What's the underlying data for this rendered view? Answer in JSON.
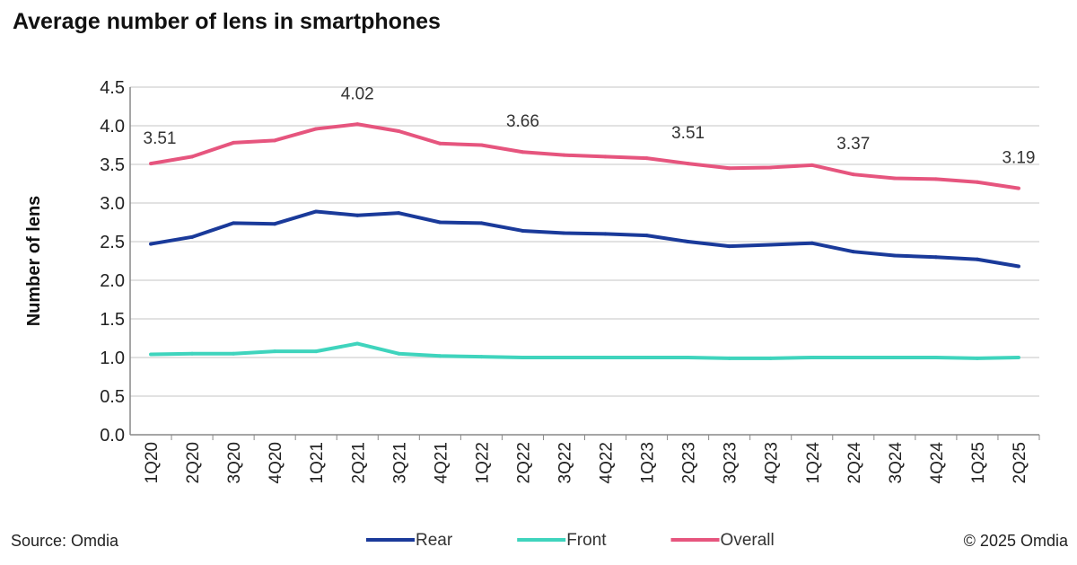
{
  "title": "Average number of lens in smartphones",
  "source": "Source: Omdia",
  "copyright": "© 2025 Omdia",
  "chart_data": {
    "type": "line",
    "title": "Average number of lens in smartphones",
    "ylabel": "Number of lens",
    "xlabel": "",
    "ylim": [
      0,
      4.5
    ],
    "yticks": [
      "0.0",
      "0.5",
      "1.0",
      "1.5",
      "2.0",
      "2.5",
      "3.0",
      "3.5",
      "4.0",
      "4.5"
    ],
    "grid": true,
    "legend": "bottom",
    "categories": [
      "1Q20",
      "2Q20",
      "3Q20",
      "4Q20",
      "1Q21",
      "2Q21",
      "3Q21",
      "4Q21",
      "1Q22",
      "2Q22",
      "3Q22",
      "4Q22",
      "1Q23",
      "2Q23",
      "3Q23",
      "4Q23",
      "1Q24",
      "2Q24",
      "3Q24",
      "4Q24",
      "1Q25",
      "2Q25"
    ],
    "series": [
      {
        "name": "Rear",
        "color": "#1a3a9a",
        "values": [
          2.47,
          2.56,
          2.74,
          2.73,
          2.89,
          2.84,
          2.87,
          2.75,
          2.74,
          2.64,
          2.61,
          2.6,
          2.58,
          2.5,
          2.44,
          2.46,
          2.48,
          2.37,
          2.32,
          2.3,
          2.27,
          2.18
        ]
      },
      {
        "name": "Front",
        "color": "#3fd4bd",
        "values": [
          1.04,
          1.05,
          1.05,
          1.08,
          1.08,
          1.18,
          1.05,
          1.02,
          1.01,
          1.0,
          1.0,
          1.0,
          1.0,
          1.0,
          0.99,
          0.99,
          1.0,
          1.0,
          1.0,
          1.0,
          0.99,
          1.0
        ]
      },
      {
        "name": "Overall",
        "color": "#e6557e",
        "values": [
          3.51,
          3.6,
          3.78,
          3.81,
          3.96,
          4.02,
          3.93,
          3.77,
          3.75,
          3.66,
          3.62,
          3.6,
          3.58,
          3.51,
          3.45,
          3.46,
          3.49,
          3.37,
          3.32,
          3.31,
          3.27,
          3.19
        ]
      }
    ],
    "annotations": [
      {
        "series": "Overall",
        "category": "1Q20",
        "text": "3.51"
      },
      {
        "series": "Overall",
        "category": "2Q21",
        "text": "4.02"
      },
      {
        "series": "Overall",
        "category": "2Q22",
        "text": "3.66"
      },
      {
        "series": "Overall",
        "category": "2Q23",
        "text": "3.51"
      },
      {
        "series": "Overall",
        "category": "2Q24",
        "text": "3.37"
      },
      {
        "series": "Overall",
        "category": "2Q25",
        "text": "3.19"
      }
    ]
  }
}
